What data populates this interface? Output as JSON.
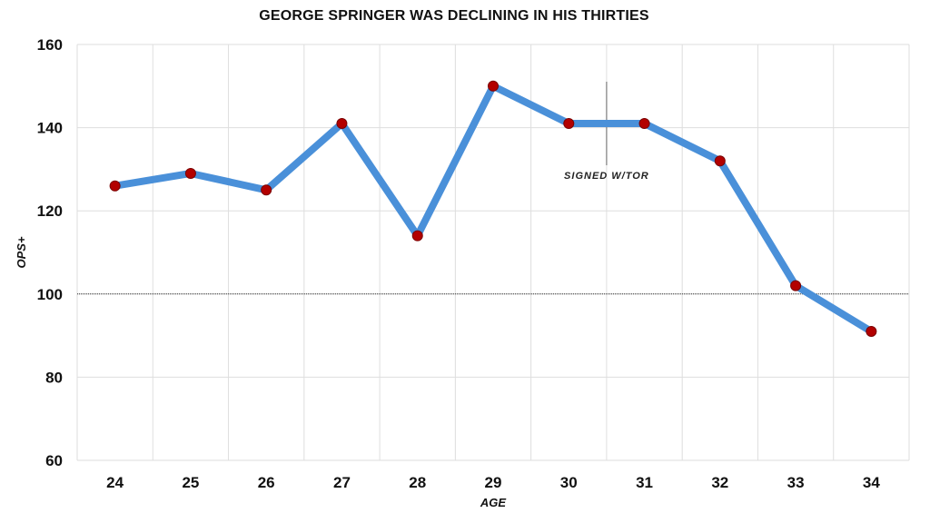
{
  "chart_data": {
    "type": "line",
    "title": "GEORGE SPRINGER WAS DECLINING IN HIS THIRTIES",
    "xlabel": "AGE",
    "ylabel": "OPS+",
    "x": [
      24,
      25,
      26,
      27,
      28,
      29,
      30,
      31,
      32,
      33,
      34
    ],
    "series": [
      {
        "values": [
          126,
          129,
          125,
          141,
          114,
          150,
          141,
          141,
          132,
          102,
          91
        ]
      }
    ],
    "ylim": [
      60,
      160
    ],
    "yticks": [
      60,
      80,
      100,
      120,
      140,
      160
    ],
    "reference_line": {
      "y": 100,
      "style": "dotted"
    },
    "annotation": {
      "text": "SIGNED W/TOR",
      "x": 30.5
    },
    "grid": true,
    "colors": {
      "line": "#4a90d9",
      "marker": "#b30000",
      "marker_edge": "#7a0000"
    }
  }
}
